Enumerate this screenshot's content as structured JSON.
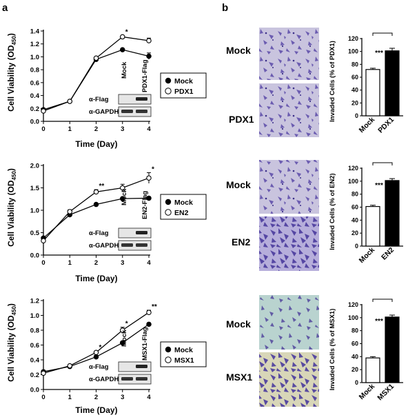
{
  "panels": {
    "a": "a",
    "b": "b"
  },
  "growth_charts": [
    {
      "ylabel": "Cell Viability (OD",
      "ylabel_sub": "450",
      "ylabel_end": ")",
      "xlabel": "Time (Day)",
      "x_ticks": [
        "0",
        "1",
        "2",
        "3",
        "4"
      ],
      "y_ticks": [
        "0.0",
        "0.2",
        "0.4",
        "0.6",
        "0.8",
        "1.0",
        "1.2",
        "1.4"
      ],
      "legend": [
        "Mock",
        "PDX1"
      ],
      "blot": {
        "lanes": [
          "Mock",
          "PDX1-Flag"
        ],
        "rows": [
          "α-Flag",
          "α-GAPDH"
        ]
      }
    },
    {
      "ylabel": "Cell Viability (OD",
      "ylabel_sub": "450",
      "ylabel_end": ")",
      "xlabel": "Time (Day)",
      "x_ticks": [
        "0",
        "1",
        "2",
        "3",
        "4"
      ],
      "y_ticks": [
        "0.0",
        "0.5",
        "1.0",
        "1.5",
        "2.0"
      ],
      "legend": [
        "Mock",
        "EN2"
      ],
      "blot": {
        "lanes": [
          "Mock",
          "EN2-Flag"
        ],
        "rows": [
          "α-Flag",
          "α-GAPDH"
        ]
      }
    },
    {
      "ylabel": "Cell Viability (OD",
      "ylabel_sub": "450",
      "ylabel_end": ")",
      "xlabel": "Time (Day)",
      "x_ticks": [
        "0",
        "1",
        "2",
        "3",
        "4"
      ],
      "y_ticks": [
        "0.0",
        "0.2",
        "0.4",
        "0.6",
        "0.8",
        "1.0",
        "1.2"
      ],
      "legend": [
        "Mock",
        "MSX1"
      ],
      "blot": {
        "lanes": [
          "Mock",
          "MSX1-Flag"
        ],
        "rows": [
          "α-Flag",
          "α-GAPDH"
        ]
      }
    }
  ],
  "invasion_rows": [
    {
      "labels": [
        "Mock",
        "PDX1"
      ]
    },
    {
      "labels": [
        "Mock",
        "EN2"
      ]
    },
    {
      "labels": [
        "Mock",
        "MSX1"
      ]
    }
  ],
  "bar_charts": [
    {
      "ylabel": "Invaded Cells (% of PDX1)",
      "categories": [
        "Mock",
        "PDX1"
      ],
      "y_ticks": [
        "0",
        "20",
        "40",
        "60",
        "80",
        "100",
        "120"
      ],
      "sig": "***"
    },
    {
      "ylabel": "Invaded Cells (% of EN2)",
      "categories": [
        "Mock",
        "EN2"
      ],
      "y_ticks": [
        "0",
        "20",
        "40",
        "60",
        "80",
        "100",
        "120"
      ],
      "sig": "***"
    },
    {
      "ylabel": "Invaded Cells (% of MSX1)",
      "categories": [
        "Mock",
        "MSX1"
      ],
      "y_ticks": [
        "0",
        "20",
        "40",
        "60",
        "80",
        "100",
        "120"
      ],
      "sig": "***"
    }
  ],
  "colors": {
    "ink": "#000000",
    "stain": "#5a4aa8",
    "bg_purple": "#c9c4de",
    "bg_teal": "#b9d3cf",
    "bg_straw": "#d8d6b8"
  },
  "chart_data": [
    {
      "type": "line",
      "x": [
        0,
        1,
        2,
        3,
        4
      ],
      "xlabel": "Time (Day)",
      "ylabel": "Cell Viability (OD450)",
      "ylim": [
        0,
        1.4
      ],
      "series": [
        {
          "name": "Mock",
          "values": [
            0.18,
            0.31,
            0.96,
            1.11,
            1.01
          ],
          "errors": [
            0.01,
            0.01,
            0.02,
            0.02,
            0.05
          ]
        },
        {
          "name": "PDX1",
          "values": [
            0.16,
            0.31,
            0.98,
            1.31,
            1.25
          ],
          "errors": [
            0.01,
            0.01,
            0.02,
            0.02,
            0.04
          ]
        }
      ],
      "annotations": [
        {
          "x": 3,
          "text": "*"
        }
      ]
    },
    {
      "type": "line",
      "x": [
        0,
        1,
        2,
        3,
        4
      ],
      "xlabel": "Time (Day)",
      "ylabel": "Cell Viability (OD450)",
      "ylim": [
        0,
        2.0
      ],
      "series": [
        {
          "name": "Mock",
          "values": [
            0.38,
            0.9,
            1.13,
            1.26,
            1.27
          ],
          "errors": [
            0.02,
            0.02,
            0.02,
            0.02,
            0.02
          ]
        },
        {
          "name": "EN2",
          "values": [
            0.32,
            0.97,
            1.41,
            1.5,
            1.72
          ],
          "errors": [
            0.02,
            0.04,
            0.05,
            0.08,
            0.12
          ]
        }
      ],
      "annotations": [
        {
          "x": 2,
          "text": "**"
        },
        {
          "x": 4,
          "text": "*"
        }
      ]
    },
    {
      "type": "line",
      "x": [
        0,
        1,
        2,
        3,
        4
      ],
      "xlabel": "Time (Day)",
      "ylabel": "Cell Viability (OD450)",
      "ylim": [
        0,
        1.2
      ],
      "series": [
        {
          "name": "Mock",
          "values": [
            0.24,
            0.31,
            0.44,
            0.63,
            0.88
          ],
          "errors": [
            0.01,
            0.01,
            0.02,
            0.02,
            0.02
          ]
        },
        {
          "name": "MSX1",
          "values": [
            0.22,
            0.32,
            0.5,
            0.8,
            1.04
          ],
          "errors": [
            0.01,
            0.01,
            0.02,
            0.04,
            0.03
          ]
        }
      ],
      "annotations": [
        {
          "x": 2,
          "text": "*"
        },
        {
          "x": 3,
          "text": "*"
        },
        {
          "x": 4,
          "text": "**"
        }
      ]
    },
    {
      "type": "bar",
      "categories": [
        "Mock",
        "PDX1"
      ],
      "values": [
        72,
        101
      ],
      "errors": [
        2,
        4
      ],
      "ylabel": "Invaded Cells (% of PDX1)",
      "ylim": [
        0,
        120
      ]
    },
    {
      "type": "bar",
      "categories": [
        "Mock",
        "EN2"
      ],
      "values": [
        61,
        101
      ],
      "errors": [
        2,
        3
      ],
      "ylabel": "Invaded Cells (% of EN2)",
      "ylim": [
        0,
        120
      ]
    },
    {
      "type": "bar",
      "categories": [
        "Mock",
        "MSX1"
      ],
      "values": [
        38,
        101
      ],
      "errors": [
        2,
        3
      ],
      "ylabel": "Invaded Cells (% of MSX1)",
      "ylim": [
        0,
        120
      ]
    }
  ]
}
